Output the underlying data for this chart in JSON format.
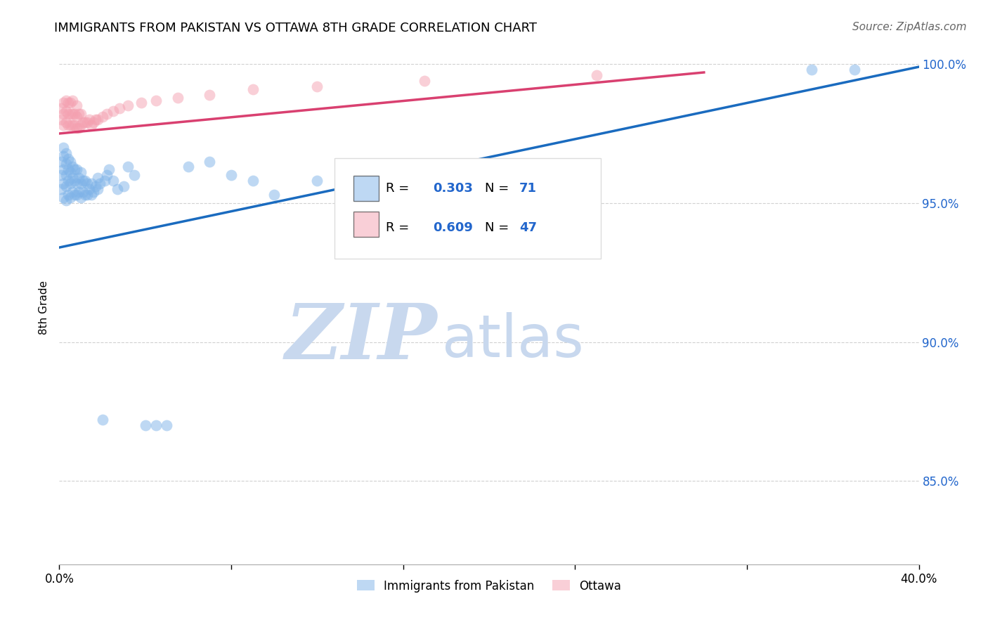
{
  "title": "IMMIGRANTS FROM PAKISTAN VS OTTAWA 8TH GRADE CORRELATION CHART",
  "source": "Source: ZipAtlas.com",
  "ylabel": "8th Grade",
  "xlim": [
    0.0,
    0.4
  ],
  "ylim": [
    0.82,
    1.005
  ],
  "xticks": [
    0.0,
    0.08,
    0.16,
    0.24,
    0.32,
    0.4
  ],
  "xticklabels": [
    "0.0%",
    "",
    "",
    "",
    "",
    "40.0%"
  ],
  "yticks": [
    0.85,
    0.9,
    0.95,
    1.0
  ],
  "yticklabels": [
    "85.0%",
    "90.0%",
    "95.0%",
    "100.0%"
  ],
  "blue_R": 0.303,
  "blue_N": 71,
  "pink_R": 0.609,
  "pink_N": 47,
  "blue_color": "#7EB3E8",
  "pink_color": "#F4A0B0",
  "blue_line_color": "#1A6BBF",
  "pink_line_color": "#D94070",
  "watermark_zip": "ZIP",
  "watermark_atlas": "atlas",
  "watermark_color_zip": "#C8D8EE",
  "watermark_color_atlas": "#C8D8EE",
  "legend_label_blue": "Immigrants from Pakistan",
  "legend_label_pink": "Ottawa",
  "blue_line_x0": 0.0,
  "blue_line_y0": 0.934,
  "blue_line_x1": 0.4,
  "blue_line_y1": 0.999,
  "pink_line_x0": 0.0,
  "pink_line_y0": 0.975,
  "pink_line_x1": 0.3,
  "pink_line_y1": 0.997,
  "blue_scatter_x": [
    0.001,
    0.001,
    0.001,
    0.002,
    0.002,
    0.002,
    0.002,
    0.002,
    0.003,
    0.003,
    0.003,
    0.003,
    0.003,
    0.004,
    0.004,
    0.004,
    0.004,
    0.005,
    0.005,
    0.005,
    0.005,
    0.006,
    0.006,
    0.006,
    0.007,
    0.007,
    0.007,
    0.008,
    0.008,
    0.008,
    0.009,
    0.009,
    0.01,
    0.01,
    0.01,
    0.011,
    0.011,
    0.012,
    0.012,
    0.013,
    0.013,
    0.014,
    0.015,
    0.015,
    0.016,
    0.017,
    0.018,
    0.018,
    0.019,
    0.02,
    0.021,
    0.022,
    0.023,
    0.025,
    0.027,
    0.03,
    0.032,
    0.035,
    0.04,
    0.045,
    0.05,
    0.06,
    0.07,
    0.08,
    0.09,
    0.1,
    0.12,
    0.15,
    0.2,
    0.35,
    0.37
  ],
  "blue_scatter_y": [
    0.955,
    0.96,
    0.965,
    0.952,
    0.957,
    0.962,
    0.967,
    0.97,
    0.951,
    0.956,
    0.96,
    0.964,
    0.968,
    0.953,
    0.958,
    0.962,
    0.966,
    0.952,
    0.957,
    0.961,
    0.965,
    0.954,
    0.959,
    0.963,
    0.953,
    0.958,
    0.962,
    0.953,
    0.957,
    0.962,
    0.954,
    0.959,
    0.952,
    0.957,
    0.961,
    0.954,
    0.958,
    0.953,
    0.958,
    0.953,
    0.957,
    0.955,
    0.953,
    0.957,
    0.954,
    0.956,
    0.955,
    0.959,
    0.957,
    0.872,
    0.958,
    0.96,
    0.962,
    0.958,
    0.955,
    0.956,
    0.963,
    0.96,
    0.87,
    0.87,
    0.87,
    0.963,
    0.965,
    0.96,
    0.958,
    0.953,
    0.958,
    0.962,
    0.963,
    0.998,
    0.998
  ],
  "pink_scatter_x": [
    0.001,
    0.001,
    0.002,
    0.002,
    0.002,
    0.003,
    0.003,
    0.003,
    0.004,
    0.004,
    0.004,
    0.005,
    0.005,
    0.005,
    0.006,
    0.006,
    0.006,
    0.007,
    0.007,
    0.008,
    0.008,
    0.008,
    0.009,
    0.009,
    0.01,
    0.01,
    0.011,
    0.012,
    0.013,
    0.014,
    0.015,
    0.016,
    0.017,
    0.018,
    0.02,
    0.022,
    0.025,
    0.028,
    0.032,
    0.038,
    0.045,
    0.055,
    0.07,
    0.09,
    0.12,
    0.17,
    0.25
  ],
  "pink_scatter_y": [
    0.98,
    0.984,
    0.978,
    0.982,
    0.986,
    0.979,
    0.983,
    0.987,
    0.978,
    0.982,
    0.986,
    0.978,
    0.982,
    0.986,
    0.978,
    0.982,
    0.987,
    0.978,
    0.982,
    0.977,
    0.981,
    0.985,
    0.977,
    0.982,
    0.978,
    0.982,
    0.979,
    0.979,
    0.979,
    0.98,
    0.978,
    0.979,
    0.98,
    0.98,
    0.981,
    0.982,
    0.983,
    0.984,
    0.985,
    0.986,
    0.987,
    0.988,
    0.989,
    0.991,
    0.992,
    0.994,
    0.996
  ]
}
